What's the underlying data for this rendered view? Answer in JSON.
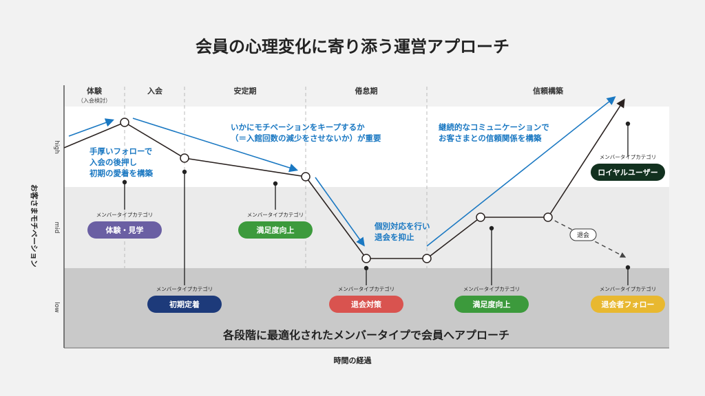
{
  "title": "会員の心理変化に寄り添う運営アプローチ",
  "phases": {
    "p1": "体験",
    "p1_sub": "（入会検討）",
    "p2": "入会",
    "p3": "安定期",
    "p4": "倦怠期",
    "p5": "信頼構築"
  },
  "y_axis": {
    "label": "お客さまモチベーション",
    "high": "high",
    "mid": "mid",
    "low": "low"
  },
  "x_axis": {
    "label": "時間の経過"
  },
  "notes": {
    "n1": [
      "手厚いフォローで",
      "入会の後押し",
      "初期の愛着を構築"
    ],
    "n2": [
      "いかにモチベーションをキープするか",
      "（＝入館回数の減少をさせないか）が重要"
    ],
    "n3": [
      "個別対応を行い",
      "退会を抑止"
    ],
    "n4": [
      "継続的なコミュニケーションで",
      "お客さまとの信頼関係を構築"
    ]
  },
  "category_label": "メンバータイプカテゴリ",
  "categories": [
    {
      "label": "体験・見学",
      "color": "#6a5fa3"
    },
    {
      "label": "初期定着",
      "color": "#1d3a7a"
    },
    {
      "label": "満足度向上",
      "color": "#3c9a3c"
    },
    {
      "label": "退会対策",
      "color": "#d9534f"
    },
    {
      "label": "満足度向上",
      "color": "#3c9a3c"
    },
    {
      "label": "ロイヤルユーザー",
      "color": "#12311f"
    },
    {
      "label": "退会者フォロー",
      "color": "#e8b830"
    }
  ],
  "churn_badge": "退会",
  "bottom_message": "各段階に最適化されたメンバータイプで会員へアプローチ",
  "colors": {
    "accent": "#1a78c2",
    "line": "#2a2220"
  }
}
